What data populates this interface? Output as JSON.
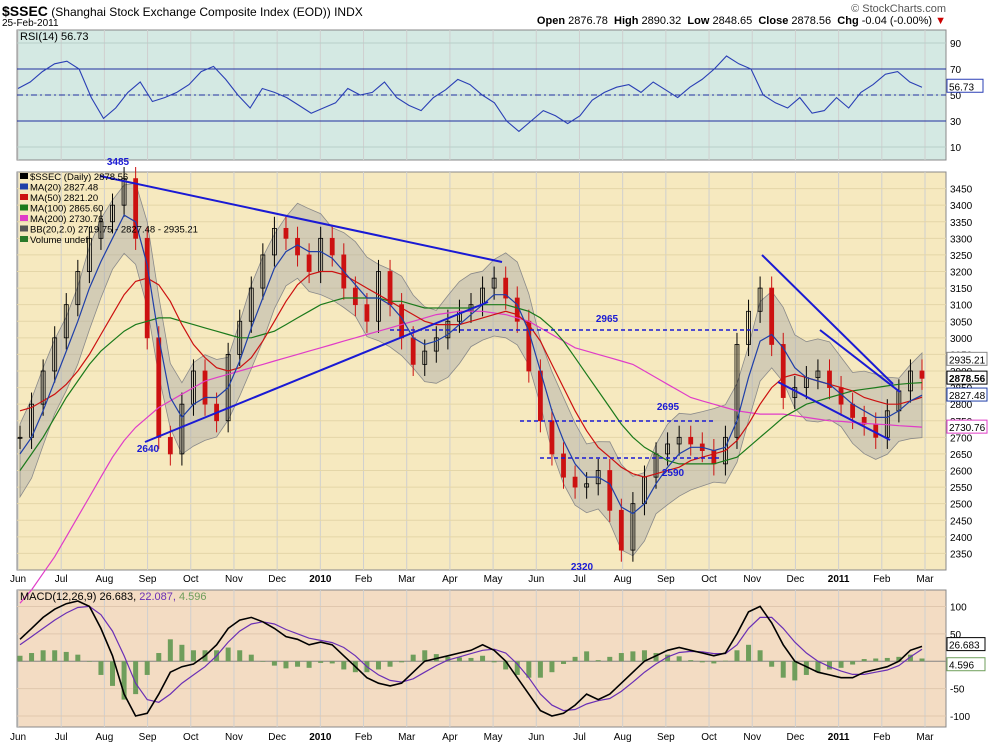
{
  "header": {
    "symbol": "$SSEC",
    "name": "(Shanghai Stock Exchange Composite Index (EOD))",
    "exchange": "INDX",
    "date": "25-Feb-2011",
    "brand": "© StockCharts.com",
    "open_label": "Open",
    "open": "2876.78",
    "high_label": "High",
    "high": "2890.32",
    "low_label": "Low",
    "low": "2848.65",
    "close_label": "Close",
    "close": "2878.56",
    "chg_label": "Chg",
    "chg": "-0.04 (-0.00%)",
    "chg_arrow": "▼"
  },
  "colors": {
    "price_bg": "#f6e9bf",
    "rsi_bg": "#d4e9e3",
    "macd_bg": "#f3dcc3",
    "ma20": "#1f3fa8",
    "ma50": "#cc1111",
    "ma100": "#1b7a1b",
    "ma200": "#e03cc8",
    "band": "#a9a9a9",
    "trendline": "#1a1ad4",
    "up_bar": "#000000",
    "down_bar": "#cc1111"
  },
  "chart_data": [
    {
      "type": "line",
      "panel": "rsi",
      "label": "RSI(14) 56.73",
      "current": "56.73",
      "ylim": [
        0,
        100
      ],
      "y_ticks": [
        90,
        70,
        50,
        30,
        10
      ],
      "levels": [
        70,
        50,
        30
      ],
      "values": [
        55,
        60,
        68,
        74,
        76,
        70,
        48,
        32,
        40,
        52,
        60,
        45,
        48,
        52,
        58,
        68,
        72,
        62,
        50,
        40,
        55,
        52,
        48,
        42,
        36,
        40,
        44,
        55,
        50,
        52,
        60,
        48,
        42,
        38,
        48,
        54,
        62,
        58,
        50,
        44,
        30,
        22,
        30,
        38,
        34,
        28,
        34,
        46,
        52,
        56,
        58,
        52,
        60,
        54,
        48,
        56,
        62,
        70,
        80,
        74,
        70,
        50,
        44,
        40,
        48,
        36,
        38,
        48,
        40,
        52,
        58,
        66,
        68,
        60,
        56
      ]
    },
    {
      "type": "candlestick",
      "panel": "price",
      "legend": [
        "$SSEC (Daily) 2878.56",
        "MA(20) 2827.48",
        "MA(50) 2821.20",
        "MA(100) 2865.60",
        "MA(200) 2730.76",
        "BB(20,2.0) 2719.75 - 2827.48 - 2935.21",
        "Volume undef"
      ],
      "ylim": [
        2300,
        3500
      ],
      "y_ticks": [
        3450,
        3400,
        3350,
        3300,
        3250,
        3200,
        3150,
        3100,
        3050,
        3000,
        2950,
        2900,
        2850,
        2800,
        2750,
        2700,
        2650,
        2600,
        2550,
        2500,
        2450,
        2400,
        2350
      ],
      "right_labels": [
        "2935.21",
        "2878.56",
        "2827.48",
        "2730.76"
      ],
      "annotations": [
        "3485",
        "2640",
        "2965",
        "2695",
        "2590",
        "2320"
      ],
      "close": [
        2700,
        2800,
        2900,
        3000,
        3100,
        3200,
        3300,
        3350,
        3400,
        3480,
        3300,
        3000,
        2700,
        2650,
        2800,
        2900,
        2800,
        2750,
        2950,
        3050,
        3150,
        3250,
        3330,
        3300,
        3250,
        3200,
        3300,
        3250,
        3150,
        3100,
        3050,
        3200,
        3100,
        3000,
        2920,
        2960,
        3000,
        3050,
        3080,
        3100,
        3150,
        3180,
        3120,
        3050,
        2900,
        2750,
        2650,
        2580,
        2550,
        2560,
        2600,
        2480,
        2360,
        2500,
        2580,
        2650,
        2680,
        2700,
        2680,
        2660,
        2620,
        2700,
        2980,
        3080,
        3150,
        2980,
        2820,
        2850,
        2880,
        2900,
        2850,
        2800,
        2760,
        2740,
        2700,
        2780,
        2840,
        2900,
        2878
      ],
      "ma20": [
        2650,
        2700,
        2780,
        2870,
        2960,
        3050,
        3150,
        3230,
        3300,
        3370,
        3350,
        3220,
        3000,
        2820,
        2760,
        2800,
        2820,
        2820,
        2850,
        2930,
        3030,
        3120,
        3210,
        3260,
        3280,
        3260,
        3260,
        3240,
        3200,
        3160,
        3120,
        3120,
        3100,
        3060,
        3000,
        2980,
        2990,
        3010,
        3040,
        3070,
        3100,
        3130,
        3130,
        3100,
        3020,
        2900,
        2780,
        2690,
        2620,
        2580,
        2580,
        2560,
        2490,
        2470,
        2500,
        2560,
        2610,
        2650,
        2670,
        2670,
        2660,
        2670,
        2750,
        2880,
        2990,
        3010,
        2970,
        2910,
        2880,
        2870,
        2860,
        2830,
        2800,
        2780,
        2760,
        2760,
        2780,
        2810,
        2827
      ],
      "ma50": [
        2780,
        2790,
        2810,
        2830,
        2860,
        2900,
        2950,
        3010,
        3070,
        3130,
        3170,
        3180,
        3160,
        3110,
        3040,
        2980,
        2940,
        2910,
        2900,
        2910,
        2940,
        2990,
        3050,
        3110,
        3160,
        3190,
        3200,
        3200,
        3190,
        3170,
        3150,
        3130,
        3110,
        3090,
        3070,
        3050,
        3040,
        3040,
        3040,
        3050,
        3060,
        3070,
        3080,
        3070,
        3040,
        2990,
        2920,
        2850,
        2780,
        2720,
        2670,
        2640,
        2610,
        2590,
        2580,
        2590,
        2600,
        2610,
        2630,
        2640,
        2650,
        2660,
        2690,
        2740,
        2800,
        2850,
        2880,
        2890,
        2880,
        2870,
        2860,
        2850,
        2840,
        2820,
        2810,
        2800,
        2800,
        2810,
        2821
      ],
      "ma100": [
        2600,
        2650,
        2700,
        2760,
        2820,
        2870,
        2920,
        2960,
        2990,
        3020,
        3040,
        3050,
        3060,
        3060,
        3050,
        3040,
        3030,
        3020,
        3010,
        3000,
        3000,
        3010,
        3020,
        3040,
        3060,
        3080,
        3100,
        3110,
        3120,
        3120,
        3120,
        3120,
        3110,
        3110,
        3100,
        3090,
        3090,
        3090,
        3090,
        3090,
        3100,
        3100,
        3100,
        3090,
        3080,
        3060,
        3030,
        2990,
        2940,
        2890,
        2840,
        2790,
        2740,
        2700,
        2670,
        2650,
        2630,
        2620,
        2620,
        2620,
        2620,
        2630,
        2640,
        2670,
        2700,
        2730,
        2760,
        2780,
        2800,
        2810,
        2820,
        2830,
        2840,
        2845,
        2850,
        2855,
        2860,
        2863,
        2865
      ],
      "ma200": [
        2200,
        2240,
        2290,
        2340,
        2400,
        2460,
        2520,
        2580,
        2640,
        2690,
        2730,
        2760,
        2790,
        2810,
        2830,
        2850,
        2870,
        2880,
        2890,
        2900,
        2910,
        2920,
        2930,
        2940,
        2950,
        2960,
        2970,
        2980,
        2990,
        3000,
        3010,
        3020,
        3030,
        3040,
        3050,
        3060,
        3070,
        3075,
        3080,
        3080,
        3080,
        3075,
        3070,
        3060,
        3050,
        3030,
        3010,
        2990,
        2970,
        2960,
        2950,
        2940,
        2930,
        2920,
        2900,
        2880,
        2860,
        2840,
        2820,
        2810,
        2800,
        2790,
        2780,
        2775,
        2770,
        2770,
        2770,
        2765,
        2760,
        2755,
        2750,
        2748,
        2745,
        2742,
        2740,
        2738,
        2735,
        2733,
        2731
      ]
    },
    {
      "type": "line",
      "panel": "macd",
      "label": "MACD(12,26,9) 26.683, 22.087, 4.596",
      "label_macd": "MACD(12,26,9) 26.683,",
      "label_signal": "22.087,",
      "label_hist": "4.596",
      "right_labels": [
        "26.683",
        "4.596"
      ],
      "ylim": [
        -120,
        130
      ],
      "y_ticks": [
        100,
        50,
        0,
        -50,
        -100
      ],
      "macd": [
        40,
        60,
        80,
        95,
        105,
        110,
        100,
        60,
        10,
        -60,
        -100,
        -95,
        -60,
        -20,
        -10,
        -5,
        10,
        30,
        60,
        75,
        80,
        72,
        60,
        45,
        40,
        30,
        35,
        30,
        10,
        -10,
        -30,
        -40,
        -45,
        -40,
        -20,
        0,
        5,
        10,
        15,
        20,
        30,
        20,
        0,
        -30,
        -60,
        -90,
        -100,
        -95,
        -80,
        -60,
        -70,
        -60,
        -40,
        -20,
        0,
        10,
        20,
        25,
        20,
        15,
        10,
        15,
        50,
        90,
        100,
        70,
        30,
        0,
        -10,
        -20,
        -25,
        -30,
        -30,
        -20,
        -15,
        -10,
        0,
        20,
        27
      ],
      "signal": [
        30,
        45,
        60,
        75,
        88,
        98,
        100,
        85,
        55,
        10,
        -40,
        -70,
        -75,
        -60,
        -40,
        -25,
        -10,
        10,
        35,
        55,
        68,
        72,
        68,
        58,
        50,
        42,
        38,
        34,
        25,
        10,
        -10,
        -25,
        -35,
        -38,
        -32,
        -20,
        -8,
        2,
        8,
        14,
        20,
        22,
        15,
        -5,
        -30,
        -60,
        -80,
        -90,
        -88,
        -78,
        -72,
        -68,
        -55,
        -38,
        -20,
        -5,
        8,
        16,
        18,
        17,
        14,
        14,
        30,
        60,
        80,
        80,
        60,
        35,
        15,
        0,
        -10,
        -18,
        -24,
        -24,
        -20,
        -16,
        -8,
        8,
        22
      ]
    }
  ],
  "x_axis": {
    "labels": [
      "Jun",
      "Jul",
      "Aug",
      "Sep",
      "Oct",
      "Nov",
      "Dec",
      "2010",
      "Feb",
      "Mar",
      "Apr",
      "May",
      "Jun",
      "Jul",
      "Aug",
      "Sep",
      "Oct",
      "Nov",
      "Dec",
      "2011",
      "Feb",
      "Mar"
    ]
  }
}
